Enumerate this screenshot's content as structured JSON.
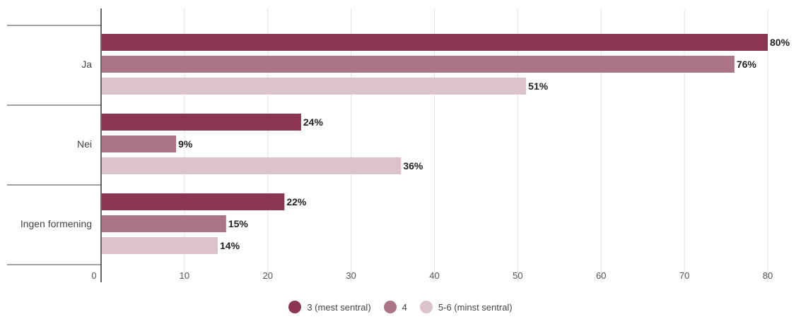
{
  "chart_data": {
    "type": "bar",
    "orientation": "horizontal",
    "categories": [
      "Ja",
      "Nei",
      "Ingen formening"
    ],
    "series": [
      {
        "name": "3 (mest sentral)",
        "values": [
          80,
          24,
          22
        ],
        "labels": [
          "80%",
          "24%",
          "22%"
        ],
        "color": "#8b3550"
      },
      {
        "name": "4",
        "values": [
          76,
          9,
          15
        ],
        "labels": [
          "76%",
          "9%",
          "15%"
        ],
        "color": "#ab7585"
      },
      {
        "name": "5-6 (minst sentral)",
        "values": [
          51,
          36,
          14
        ],
        "labels": [
          "51%",
          "36%",
          "14%"
        ],
        "color": "#dcc3ca"
      }
    ],
    "xlim": [
      0,
      80
    ],
    "xticks": [
      0,
      10,
      20,
      30,
      40,
      50,
      60,
      70,
      80
    ],
    "xtick_labels": [
      "0",
      "10",
      "20",
      "30",
      "40",
      "50",
      "60",
      "70",
      "80"
    ],
    "grid": true,
    "legend_position": "bottom"
  }
}
